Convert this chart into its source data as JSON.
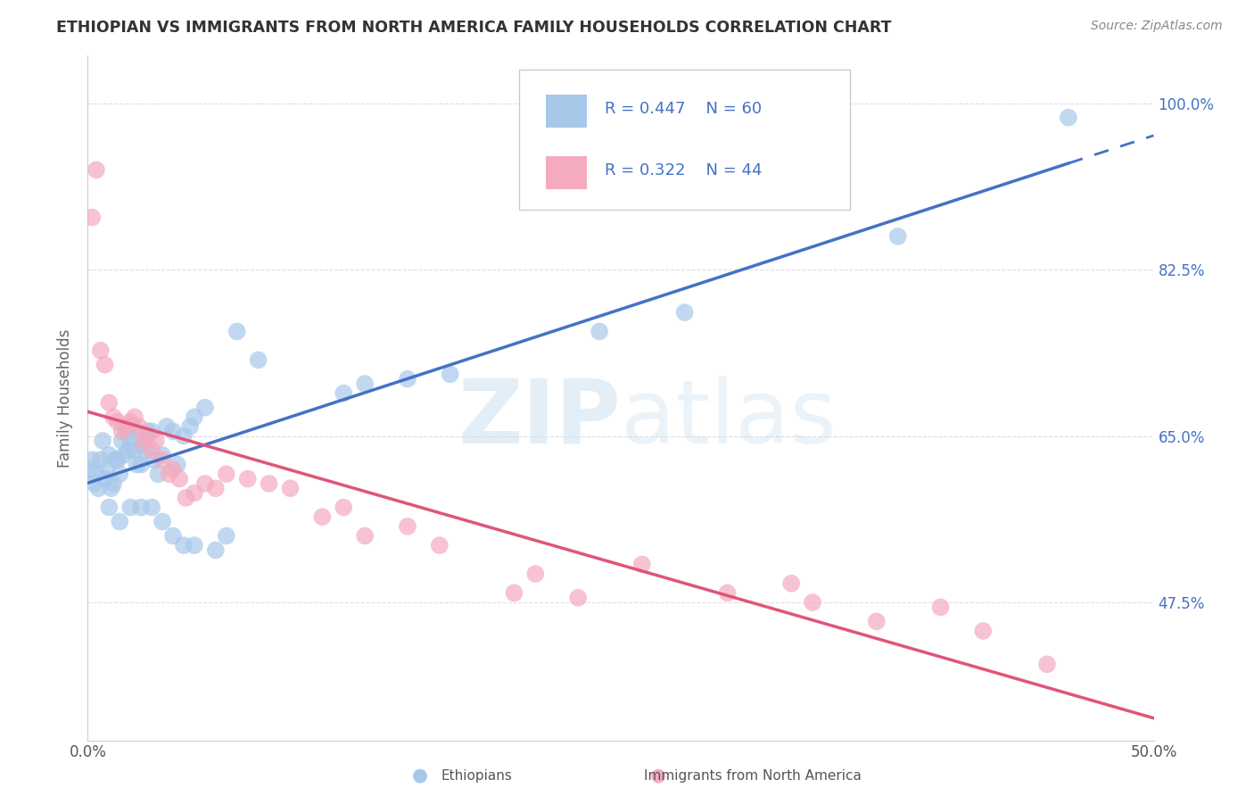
{
  "title": "ETHIOPIAN VS IMMIGRANTS FROM NORTH AMERICA FAMILY HOUSEHOLDS CORRELATION CHART",
  "source": "Source: ZipAtlas.com",
  "ylabel": "Family Households",
  "xlim": [
    0.0,
    0.5
  ],
  "ylim": [
    0.33,
    1.05
  ],
  "yticks": [
    0.475,
    0.65,
    0.825,
    1.0
  ],
  "ytick_labels": [
    "47.5%",
    "65.0%",
    "82.5%",
    "100.0%"
  ],
  "xticks": [
    0.0,
    0.5
  ],
  "xtick_labels": [
    "0.0%",
    "50.0%"
  ],
  "blue_R": 0.447,
  "blue_N": 60,
  "pink_R": 0.322,
  "pink_N": 44,
  "blue_color": "#A8C8EA",
  "pink_color": "#F4AABF",
  "blue_line_color": "#4472C4",
  "pink_line_color": "#E05578",
  "blue_scatter": [
    [
      0.001,
      0.615
    ],
    [
      0.002,
      0.625
    ],
    [
      0.003,
      0.6
    ],
    [
      0.004,
      0.61
    ],
    [
      0.005,
      0.595
    ],
    [
      0.006,
      0.625
    ],
    [
      0.007,
      0.645
    ],
    [
      0.008,
      0.605
    ],
    [
      0.009,
      0.615
    ],
    [
      0.01,
      0.63
    ],
    [
      0.011,
      0.595
    ],
    [
      0.012,
      0.6
    ],
    [
      0.013,
      0.625
    ],
    [
      0.014,
      0.625
    ],
    [
      0.015,
      0.61
    ],
    [
      0.016,
      0.645
    ],
    [
      0.017,
      0.63
    ],
    [
      0.018,
      0.655
    ],
    [
      0.019,
      0.635
    ],
    [
      0.02,
      0.645
    ],
    [
      0.021,
      0.66
    ],
    [
      0.022,
      0.635
    ],
    [
      0.023,
      0.62
    ],
    [
      0.024,
      0.65
    ],
    [
      0.025,
      0.62
    ],
    [
      0.026,
      0.64
    ],
    [
      0.027,
      0.635
    ],
    [
      0.028,
      0.655
    ],
    [
      0.03,
      0.655
    ],
    [
      0.031,
      0.625
    ],
    [
      0.033,
      0.61
    ],
    [
      0.035,
      0.63
    ],
    [
      0.037,
      0.66
    ],
    [
      0.04,
      0.655
    ],
    [
      0.042,
      0.62
    ],
    [
      0.045,
      0.65
    ],
    [
      0.048,
      0.66
    ],
    [
      0.05,
      0.67
    ],
    [
      0.055,
      0.68
    ],
    [
      0.01,
      0.575
    ],
    [
      0.015,
      0.56
    ],
    [
      0.02,
      0.575
    ],
    [
      0.025,
      0.575
    ],
    [
      0.03,
      0.575
    ],
    [
      0.035,
      0.56
    ],
    [
      0.04,
      0.545
    ],
    [
      0.045,
      0.535
    ],
    [
      0.05,
      0.535
    ],
    [
      0.06,
      0.53
    ],
    [
      0.065,
      0.545
    ],
    [
      0.07,
      0.76
    ],
    [
      0.08,
      0.73
    ],
    [
      0.12,
      0.695
    ],
    [
      0.13,
      0.705
    ],
    [
      0.15,
      0.71
    ],
    [
      0.17,
      0.715
    ],
    [
      0.24,
      0.76
    ],
    [
      0.28,
      0.78
    ],
    [
      0.38,
      0.86
    ],
    [
      0.46,
      0.985
    ]
  ],
  "pink_scatter": [
    [
      0.002,
      0.88
    ],
    [
      0.004,
      0.93
    ],
    [
      0.006,
      0.74
    ],
    [
      0.008,
      0.725
    ],
    [
      0.01,
      0.685
    ],
    [
      0.012,
      0.67
    ],
    [
      0.014,
      0.665
    ],
    [
      0.016,
      0.655
    ],
    [
      0.018,
      0.66
    ],
    [
      0.02,
      0.665
    ],
    [
      0.022,
      0.67
    ],
    [
      0.024,
      0.66
    ],
    [
      0.026,
      0.645
    ],
    [
      0.028,
      0.65
    ],
    [
      0.03,
      0.635
    ],
    [
      0.032,
      0.645
    ],
    [
      0.035,
      0.625
    ],
    [
      0.038,
      0.61
    ],
    [
      0.04,
      0.615
    ],
    [
      0.043,
      0.605
    ],
    [
      0.046,
      0.585
    ],
    [
      0.05,
      0.59
    ],
    [
      0.055,
      0.6
    ],
    [
      0.06,
      0.595
    ],
    [
      0.065,
      0.61
    ],
    [
      0.075,
      0.605
    ],
    [
      0.085,
      0.6
    ],
    [
      0.095,
      0.595
    ],
    [
      0.11,
      0.565
    ],
    [
      0.12,
      0.575
    ],
    [
      0.13,
      0.545
    ],
    [
      0.15,
      0.555
    ],
    [
      0.165,
      0.535
    ],
    [
      0.2,
      0.485
    ],
    [
      0.21,
      0.505
    ],
    [
      0.23,
      0.48
    ],
    [
      0.26,
      0.515
    ],
    [
      0.3,
      0.485
    ],
    [
      0.33,
      0.495
    ],
    [
      0.34,
      0.475
    ],
    [
      0.37,
      0.455
    ],
    [
      0.4,
      0.47
    ],
    [
      0.42,
      0.445
    ],
    [
      0.45,
      0.41
    ]
  ],
  "watermark_zip": "ZIP",
  "watermark_atlas": "atlas",
  "background_color": "#FFFFFF",
  "grid_color": "#DDDDDD"
}
